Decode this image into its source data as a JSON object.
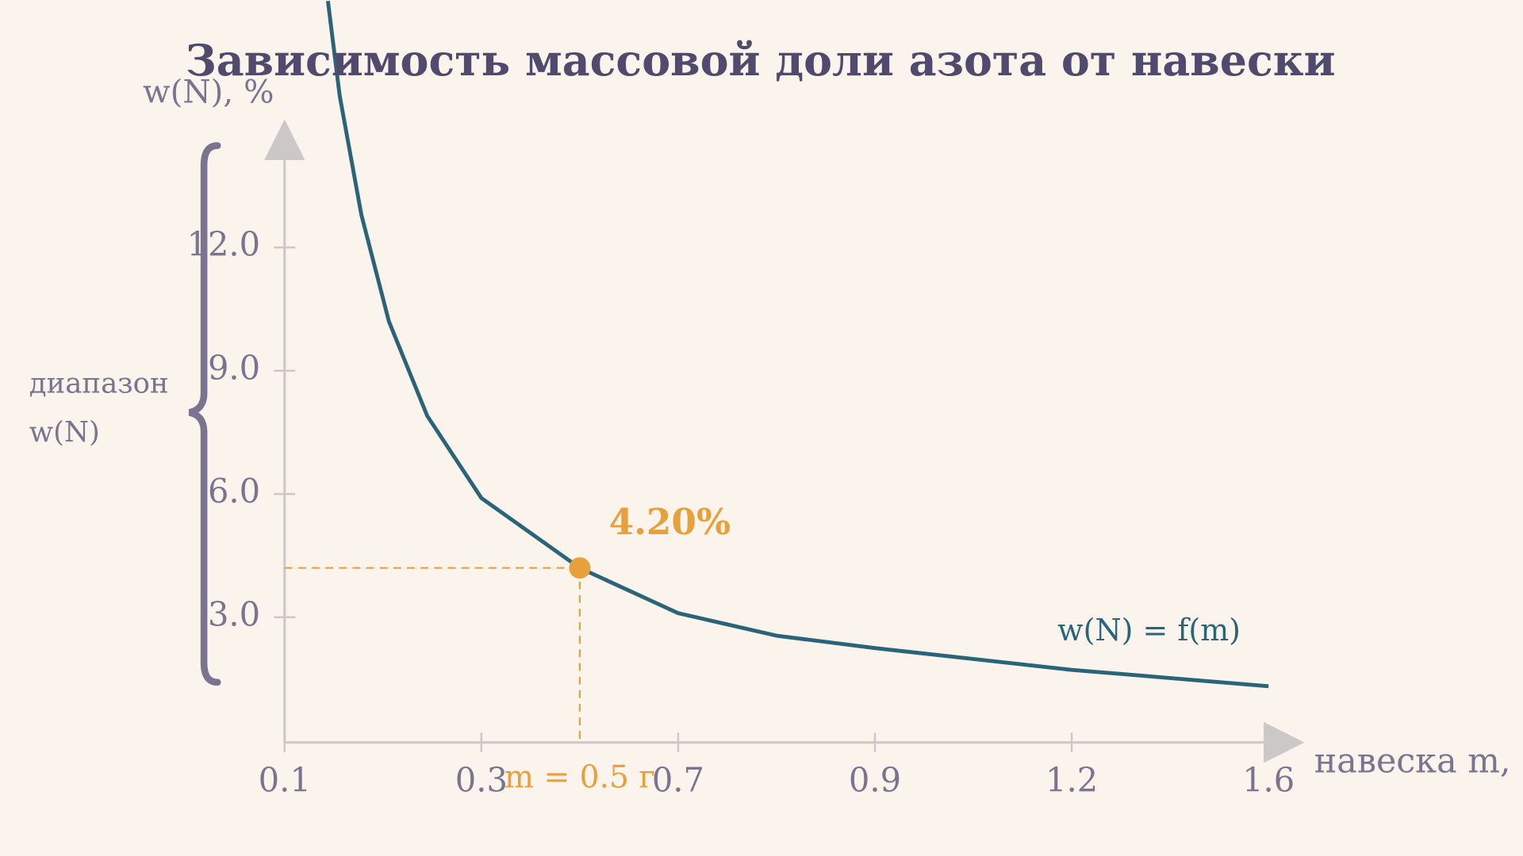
{
  "chart_data": {
    "type": "line",
    "title": "Зависимость массовой доли азота от навески",
    "x_label": "навеска m,",
    "y_label": "w(N), %",
    "brace_label": [
      "диапазон",
      "w(N)"
    ],
    "xlim": [
      0.1,
      1.6
    ],
    "xticks": [
      0.1,
      0.3,
      0.7,
      0.9,
      1.2,
      1.6
    ],
    "ylim": [
      0,
      15
    ],
    "yticks": [
      {
        "value": 3,
        "label": "3.0"
      },
      {
        "value": 6,
        "label": "6.0"
      },
      {
        "value": 9,
        "label": "9.0"
      },
      {
        "value": 12,
        "label": "12.0"
      }
    ],
    "series": [
      {
        "name": "w(N) = f(m)",
        "color": "#2a6478",
        "x": [
          0.144,
          0.156,
          0.178,
          0.206,
          0.245,
          0.3,
          0.5,
          0.7,
          0.8,
          0.9,
          1.2,
          1.6
        ],
        "values": [
          18.0,
          15.7,
          12.8,
          10.2,
          7.9,
          5.9,
          4.2,
          3.1,
          2.55,
          2.25,
          1.72,
          1.32
        ]
      }
    ],
    "highlight": {
      "x": 0.5,
      "y": 4.2,
      "value_label": "4.20%",
      "x_text": "m = 0.5 г",
      "color": "#e8a03a"
    }
  }
}
